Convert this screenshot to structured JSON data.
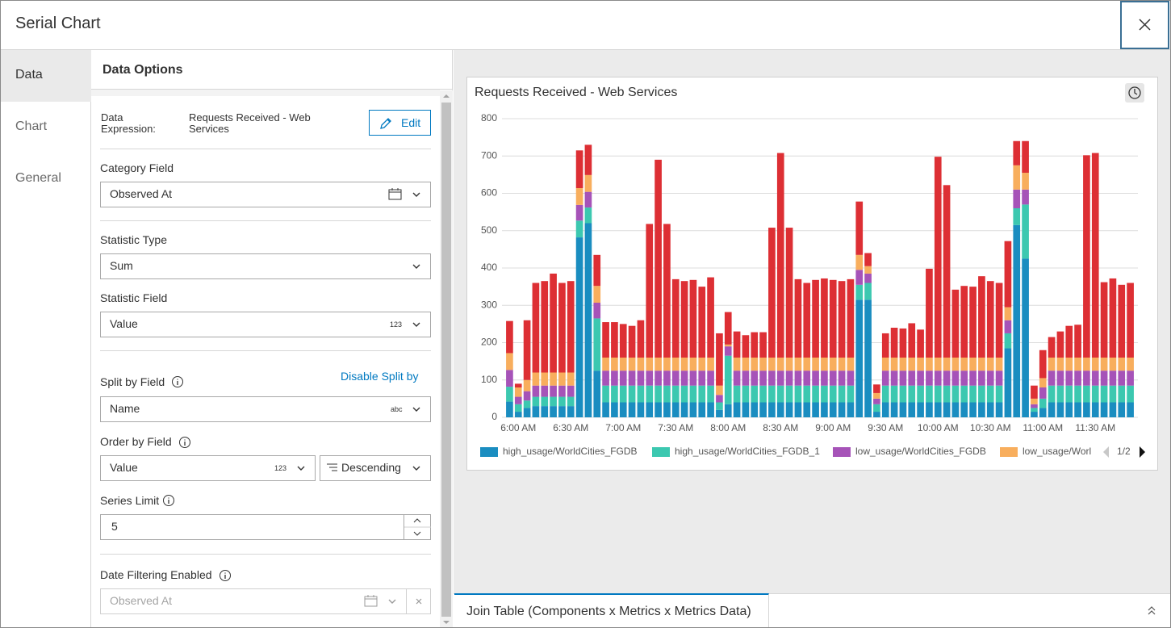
{
  "header": {
    "title": "Serial Chart"
  },
  "sidebar": {
    "tabs": [
      "Data",
      "Chart",
      "General"
    ]
  },
  "panel": {
    "title": "Data Options",
    "data_expression": {
      "label": "Data Expression:",
      "value": "Requests Received - Web Services",
      "button": "Edit"
    },
    "category_field": {
      "label": "Category Field",
      "value": "Observed At"
    },
    "statistic_type": {
      "label": "Statistic Type",
      "value": "Sum"
    },
    "statistic_field": {
      "label": "Statistic Field",
      "value": "Value",
      "type_badge": "123"
    },
    "split_by_field": {
      "label": "Split by Field",
      "action": "Disable Split by",
      "value": "Name",
      "type_badge": "abc"
    },
    "order_by_field": {
      "label": "Order by Field",
      "value": "Value",
      "type_badge": "123",
      "order": "Descending"
    },
    "series_limit": {
      "label": "Series Limit",
      "value": 5
    },
    "date_filtering": {
      "label": "Date Filtering Enabled",
      "value": "Observed At"
    }
  },
  "bottom_tab": {
    "label": "Join Table (Components x Metrics x Metrics Data)"
  },
  "chart_data": {
    "type": "bar",
    "stacked": true,
    "title": "Requests Received - Web Services",
    "categories": [
      null,
      "6:00 AM",
      null,
      null,
      null,
      null,
      null,
      "6:30 AM",
      null,
      null,
      null,
      null,
      null,
      "7:00 AM",
      null,
      null,
      null,
      null,
      null,
      "7:30 AM",
      null,
      null,
      null,
      null,
      null,
      "8:00 AM",
      null,
      null,
      null,
      null,
      null,
      "8:30 AM",
      null,
      null,
      null,
      null,
      null,
      "9:00 AM",
      null,
      null,
      null,
      null,
      null,
      "9:30 AM",
      null,
      null,
      null,
      null,
      null,
      "10:00 AM",
      null,
      null,
      null,
      null,
      null,
      "10:30 AM",
      null,
      null,
      null,
      null,
      null,
      "11:00 AM",
      null,
      null,
      null,
      null,
      null,
      "11:30 AM",
      null,
      null,
      null,
      null
    ],
    "series": [
      {
        "name": "high_usage/WorldCities_FGDB",
        "color": "#1a8dc0",
        "values": [
          42,
          15,
          25,
          30,
          30,
          30,
          30,
          30,
          482,
          520,
          125,
          40,
          40,
          40,
          40,
          40,
          40,
          40,
          40,
          40,
          40,
          40,
          40,
          40,
          20,
          35,
          40,
          40,
          40,
          40,
          40,
          40,
          40,
          40,
          40,
          40,
          40,
          40,
          40,
          40,
          315,
          315,
          15,
          40,
          40,
          40,
          40,
          40,
          40,
          40,
          40,
          40,
          40,
          40,
          40,
          40,
          40,
          185,
          515,
          425,
          15,
          25,
          40,
          40,
          40,
          40,
          40,
          40,
          40,
          40,
          40,
          40
        ]
      },
      {
        "name": "high_usage/WorldCities_FGDB_1",
        "color": "#3cc8b0",
        "values": [
          40,
          20,
          20,
          25,
          25,
          25,
          25,
          25,
          45,
          42,
          140,
          45,
          45,
          45,
          45,
          45,
          45,
          45,
          45,
          45,
          45,
          45,
          45,
          45,
          20,
          130,
          45,
          45,
          45,
          45,
          45,
          45,
          45,
          45,
          45,
          45,
          45,
          45,
          45,
          45,
          40,
          45,
          20,
          45,
          45,
          45,
          45,
          45,
          45,
          45,
          45,
          45,
          45,
          45,
          45,
          45,
          45,
          40,
          45,
          145,
          10,
          25,
          45,
          45,
          45,
          45,
          45,
          45,
          45,
          45,
          45,
          45
        ]
      },
      {
        "name": "low_usage/WorldCities_FGDB",
        "color": "#a653b8",
        "values": [
          45,
          20,
          25,
          30,
          30,
          30,
          30,
          30,
          42,
          42,
          42,
          40,
          40,
          40,
          40,
          40,
          40,
          40,
          40,
          40,
          40,
          40,
          40,
          40,
          20,
          25,
          40,
          40,
          40,
          40,
          40,
          40,
          40,
          40,
          40,
          40,
          40,
          40,
          40,
          40,
          40,
          25,
          15,
          40,
          40,
          40,
          40,
          40,
          40,
          40,
          40,
          40,
          40,
          40,
          40,
          40,
          40,
          35,
          50,
          40,
          10,
          30,
          40,
          40,
          40,
          40,
          40,
          40,
          40,
          40,
          40,
          40
        ]
      },
      {
        "name": "low_usage/Worl",
        "color": "#f8ae5d",
        "values": [
          45,
          25,
          30,
          35,
          35,
          35,
          35,
          35,
          45,
          45,
          45,
          35,
          35,
          35,
          35,
          35,
          35,
          35,
          35,
          35,
          35,
          35,
          35,
          35,
          25,
          5,
          35,
          35,
          35,
          35,
          35,
          35,
          35,
          35,
          35,
          35,
          35,
          35,
          35,
          35,
          40,
          20,
          15,
          35,
          35,
          35,
          35,
          35,
          35,
          35,
          35,
          35,
          35,
          35,
          35,
          35,
          35,
          35,
          65,
          45,
          15,
          25,
          35,
          35,
          35,
          35,
          35,
          35,
          35,
          35,
          35,
          35
        ]
      },
      {
        "color": "#dd2f34",
        "values": [
          86,
          10,
          160,
          240,
          245,
          265,
          240,
          245,
          101,
          81,
          83,
          95,
          95,
          90,
          85,
          100,
          358,
          530,
          358,
          210,
          205,
          208,
          190,
          215,
          140,
          87,
          70,
          60,
          68,
          68,
          348,
          548,
          348,
          210,
          200,
          208,
          212,
          208,
          205,
          210,
          143,
          35,
          23,
          65,
          80,
          78,
          92,
          75,
          238,
          538,
          462,
          182,
          192,
          190,
          218,
          205,
          200,
          177,
          65,
          85,
          35,
          75,
          55,
          70,
          85,
          88,
          542,
          548,
          202,
          212,
          195,
          200
        ]
      }
    ],
    "ylim": [
      0,
      800
    ],
    "yticks": [
      0,
      100,
      200,
      300,
      400,
      500,
      600,
      700,
      800
    ],
    "grid": true,
    "legend": "bottom",
    "legend_page": "1/2"
  }
}
